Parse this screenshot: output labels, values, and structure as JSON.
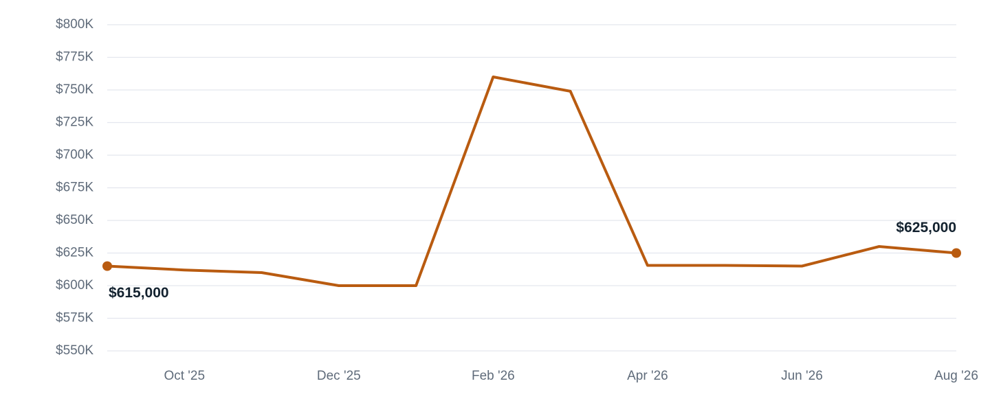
{
  "chart_data": {
    "type": "line",
    "categories": [
      null,
      "Oct '25",
      null,
      "Dec '25",
      null,
      "Feb '26",
      null,
      "Apr '26",
      null,
      "Jun '26",
      null,
      "Aug '26"
    ],
    "series": [
      {
        "color": "#b95b10",
        "values": [
          615000,
          612000,
          610000,
          600000,
          600000,
          760000,
          749000,
          615500,
          615500,
          615000,
          630000,
          625000
        ],
        "value_labels": [
          "$615,000",
          null,
          null,
          null,
          null,
          null,
          null,
          null,
          null,
          null,
          null,
          "$625,000"
        ]
      }
    ],
    "ylim": [
      550000,
      800000
    ],
    "yticks": [
      {
        "value": 550000,
        "label": "$550K"
      },
      {
        "value": 575000,
        "label": "$575K"
      },
      {
        "value": 600000,
        "label": "$600K"
      },
      {
        "value": 625000,
        "label": "$625K"
      },
      {
        "value": 650000,
        "label": "$650K"
      },
      {
        "value": 675000,
        "label": "$675K"
      },
      {
        "value": 700000,
        "label": "$700K"
      },
      {
        "value": 725000,
        "label": "$725K"
      },
      {
        "value": 750000,
        "label": "$750K"
      },
      {
        "value": 775000,
        "label": "$775K"
      },
      {
        "value": 800000,
        "label": "$800K"
      }
    ],
    "grid": true
  }
}
